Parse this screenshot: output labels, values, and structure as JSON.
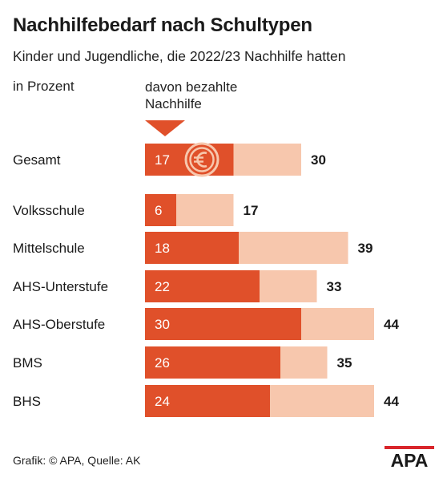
{
  "title": "Nachhilfebedarf nach Schultypen",
  "subtitle": "Kinder und Jugendliche, die 2022/23 Nachhilfe hatten",
  "unit_label": "in Prozent",
  "legend_line1": "davon bezahlte",
  "legend_line2": "Nachhilfe",
  "footer": "Grafik: © APA, Quelle: AK",
  "logo_text": "APA",
  "colors": {
    "paid": "#e0502a",
    "total": "#f7c7ad",
    "text_dark": "#1a1a1a",
    "white": "#ffffff",
    "logo": "#d9262b"
  },
  "chart_data": {
    "type": "bar",
    "orientation": "horizontal",
    "stacked": "overlay",
    "categories": [
      "Gesamt",
      "Volksschule",
      "Mittelschule",
      "AHS-Unterstufe",
      "AHS-Oberstufe",
      "BMS",
      "BHS"
    ],
    "series": [
      {
        "name": "davon bezahlte Nachhilfe",
        "values": [
          17,
          6,
          18,
          22,
          30,
          26,
          24
        ]
      },
      {
        "name": "Kinder und Jugendliche, die 2022/23 Nachhilfe hatten",
        "values": [
          30,
          17,
          39,
          33,
          44,
          35,
          44
        ]
      }
    ],
    "unit": "in Prozent",
    "annotations": [
      "euro-icon on Gesamt paid bar"
    ]
  }
}
